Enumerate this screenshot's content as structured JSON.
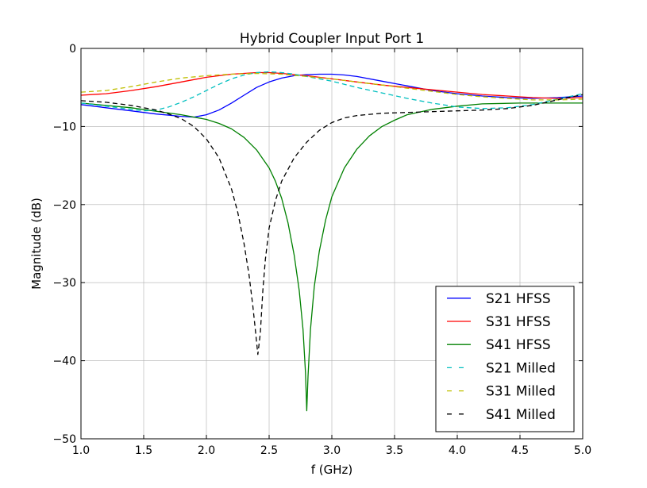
{
  "chart_data": {
    "type": "line",
    "title": "Hybrid Coupler Input Port 1",
    "xlabel": "f (GHz)",
    "ylabel": "Magnitude (dB)",
    "xlim": [
      1.0,
      5.0
    ],
    "ylim": [
      -50,
      0
    ],
    "xticks": [
      1.0,
      1.5,
      2.0,
      2.5,
      3.0,
      3.5,
      4.0,
      4.5,
      5.0
    ],
    "xtick_labels": [
      "1.0",
      "1.5",
      "2.0",
      "2.5",
      "3.0",
      "3.5",
      "4.0",
      "4.5",
      "5.0"
    ],
    "yticks": [
      0,
      -10,
      -20,
      -30,
      -40,
      -50
    ],
    "ytick_labels": [
      "0",
      "−10",
      "−20",
      "−30",
      "−40",
      "−50"
    ],
    "grid": true,
    "legend_position": "bottom-right",
    "series": [
      {
        "name": "S21 HFSS",
        "color": "#0000ff",
        "dash": "solid",
        "x": [
          1.0,
          1.2,
          1.4,
          1.6,
          1.8,
          1.9,
          2.0,
          2.1,
          2.2,
          2.3,
          2.4,
          2.5,
          2.6,
          2.7,
          2.8,
          2.9,
          3.0,
          3.1,
          3.2,
          3.4,
          3.6,
          3.8,
          4.0,
          4.2,
          4.4,
          4.6,
          4.8,
          5.0
        ],
        "y": [
          -7.2,
          -7.6,
          -8.0,
          -8.4,
          -8.7,
          -8.8,
          -8.5,
          -7.9,
          -7.0,
          -6.0,
          -5.0,
          -4.3,
          -3.8,
          -3.5,
          -3.35,
          -3.3,
          -3.3,
          -3.4,
          -3.6,
          -4.2,
          -4.8,
          -5.4,
          -5.8,
          -6.1,
          -6.3,
          -6.4,
          -6.3,
          -6.1
        ]
      },
      {
        "name": "S31 HFSS",
        "color": "#ff0000",
        "dash": "solid",
        "x": [
          1.0,
          1.2,
          1.4,
          1.6,
          1.8,
          2.0,
          2.2,
          2.4,
          2.5,
          2.6,
          2.8,
          3.0,
          3.2,
          3.4,
          3.6,
          3.8,
          4.0,
          4.2,
          4.4,
          4.6,
          4.8,
          5.0
        ],
        "y": [
          -6.0,
          -5.8,
          -5.4,
          -4.9,
          -4.3,
          -3.7,
          -3.3,
          -3.1,
          -3.1,
          -3.2,
          -3.5,
          -3.9,
          -4.3,
          -4.7,
          -5.0,
          -5.3,
          -5.6,
          -5.9,
          -6.1,
          -6.3,
          -6.4,
          -6.3
        ]
      },
      {
        "name": "S41 HFSS",
        "color": "#008000",
        "dash": "solid",
        "x": [
          1.0,
          1.4,
          1.8,
          2.0,
          2.1,
          2.2,
          2.3,
          2.4,
          2.5,
          2.55,
          2.6,
          2.65,
          2.7,
          2.74,
          2.77,
          2.79,
          2.8,
          2.81,
          2.83,
          2.86,
          2.9,
          2.95,
          3.0,
          3.1,
          3.2,
          3.3,
          3.4,
          3.5,
          3.6,
          3.8,
          4.0,
          4.2,
          4.5,
          4.8,
          5.0
        ],
        "y": [
          -7.0,
          -7.6,
          -8.5,
          -9.1,
          -9.6,
          -10.3,
          -11.4,
          -13.0,
          -15.3,
          -17.0,
          -19.2,
          -22.3,
          -26.5,
          -31.0,
          -36.0,
          -41.5,
          -46.4,
          -42.0,
          -36.0,
          -30.5,
          -26.0,
          -22.0,
          -19.0,
          -15.3,
          -12.9,
          -11.2,
          -10.0,
          -9.2,
          -8.5,
          -7.8,
          -7.4,
          -7.1,
          -7.0,
          -7.0,
          -7.0
        ]
      },
      {
        "name": "S21 Milled",
        "color": "#00bfbf",
        "dash": "dashed",
        "x": [
          1.0,
          1.2,
          1.4,
          1.5,
          1.6,
          1.7,
          1.8,
          1.9,
          2.0,
          2.1,
          2.2,
          2.3,
          2.4,
          2.5,
          2.6,
          2.7,
          2.8,
          3.0,
          3.2,
          3.4,
          3.6,
          3.8,
          4.0,
          4.2,
          4.4,
          4.6,
          4.8,
          5.0
        ],
        "y": [
          -7.0,
          -7.4,
          -7.8,
          -8.0,
          -7.9,
          -7.5,
          -6.9,
          -6.2,
          -5.4,
          -4.6,
          -3.9,
          -3.4,
          -3.1,
          -3.0,
          -3.1,
          -3.3,
          -3.6,
          -4.2,
          -5.0,
          -5.7,
          -6.4,
          -7.0,
          -7.5,
          -7.7,
          -7.6,
          -7.2,
          -6.5,
          -5.8
        ]
      },
      {
        "name": "S31 Milled",
        "color": "#bfbf00",
        "dash": "dashed",
        "x": [
          1.0,
          1.2,
          1.4,
          1.6,
          1.8,
          2.0,
          2.2,
          2.4,
          2.6,
          2.8,
          3.0,
          3.2,
          3.4,
          3.6,
          3.8,
          4.0,
          4.2,
          4.4,
          4.6,
          4.8,
          5.0
        ],
        "y": [
          -5.6,
          -5.4,
          -4.9,
          -4.3,
          -3.8,
          -3.5,
          -3.3,
          -3.2,
          -3.3,
          -3.6,
          -3.9,
          -4.3,
          -4.7,
          -5.1,
          -5.5,
          -5.9,
          -6.2,
          -6.4,
          -6.6,
          -6.6,
          -6.5
        ]
      },
      {
        "name": "S41 Milled",
        "color": "#000000",
        "dash": "dashed",
        "x": [
          1.0,
          1.2,
          1.4,
          1.6,
          1.7,
          1.8,
          1.9,
          2.0,
          2.1,
          2.2,
          2.25,
          2.3,
          2.34,
          2.37,
          2.39,
          2.41,
          2.43,
          2.45,
          2.47,
          2.5,
          2.55,
          2.6,
          2.7,
          2.8,
          2.9,
          3.0,
          3.1,
          3.2,
          3.4,
          3.6,
          3.8,
          4.0,
          4.2,
          4.4,
          4.6,
          4.8,
          5.0
        ],
        "y": [
          -6.7,
          -6.9,
          -7.3,
          -7.9,
          -8.4,
          -9.0,
          -10.0,
          -11.6,
          -14.0,
          -18.0,
          -21.0,
          -25.0,
          -29.0,
          -33.0,
          -36.0,
          -39.2,
          -36.5,
          -31.0,
          -27.0,
          -23.0,
          -19.5,
          -17.0,
          -14.0,
          -12.0,
          -10.5,
          -9.5,
          -8.9,
          -8.6,
          -8.3,
          -8.2,
          -8.1,
          -8.0,
          -7.9,
          -7.7,
          -7.3,
          -6.6,
          -5.9
        ]
      }
    ]
  }
}
